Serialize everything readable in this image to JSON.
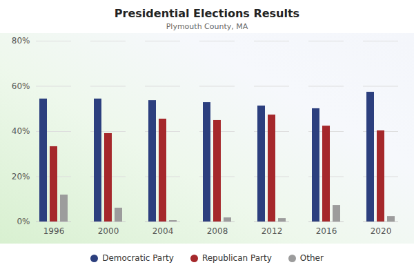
{
  "chart_data": {
    "type": "bar",
    "title": "Presidential Elections Results",
    "subtitle": "Plymouth County, MA",
    "categories": [
      "1996",
      "2000",
      "2004",
      "2008",
      "2012",
      "2016",
      "2020"
    ],
    "series": [
      {
        "name": "Democratic Party",
        "color": "#2c3f7e",
        "values": [
          54.4,
          54.4,
          53.7,
          52.8,
          51.3,
          50.1,
          57.4
        ]
      },
      {
        "name": "Republican Party",
        "color": "#a5282b",
        "values": [
          33.3,
          39.1,
          45.5,
          44.9,
          47.3,
          42.4,
          40.3
        ]
      },
      {
        "name": "Other",
        "color": "#9c9c9c",
        "values": [
          11.9,
          6.1,
          0.6,
          1.8,
          1.5,
          7.3,
          2.4
        ]
      }
    ],
    "ylim": [
      0,
      80
    ],
    "yticks": [
      {
        "value": 0,
        "label": "0%"
      },
      {
        "value": 20,
        "label": "20%"
      },
      {
        "value": 40,
        "label": "40%"
      },
      {
        "value": 60,
        "label": "60%"
      },
      {
        "value": 80,
        "label": "80%"
      }
    ],
    "grid": true,
    "legend": "bottom"
  }
}
